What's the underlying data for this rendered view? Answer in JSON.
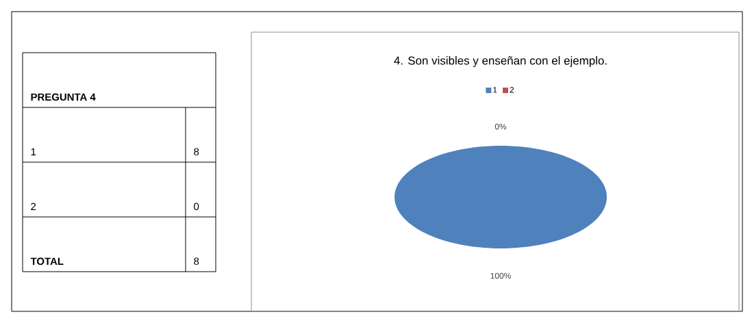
{
  "chart_data": [
    {
      "type": "other",
      "title": "PREGUNTA 4",
      "categories": [
        "1",
        "2",
        "TOTAL"
      ],
      "values": [
        8,
        0,
        8
      ],
      "data_labels": true
    },
    {
      "type": "pie",
      "title": "4. Son visibles y enseñan con el ejemplo.",
      "categories": [
        "1",
        "2"
      ],
      "values": [
        100,
        0
      ],
      "colors": [
        "#4f81bd",
        "#c0504d"
      ],
      "value_labels": [
        "100%",
        "0%"
      ],
      "legend": "top"
    }
  ]
}
